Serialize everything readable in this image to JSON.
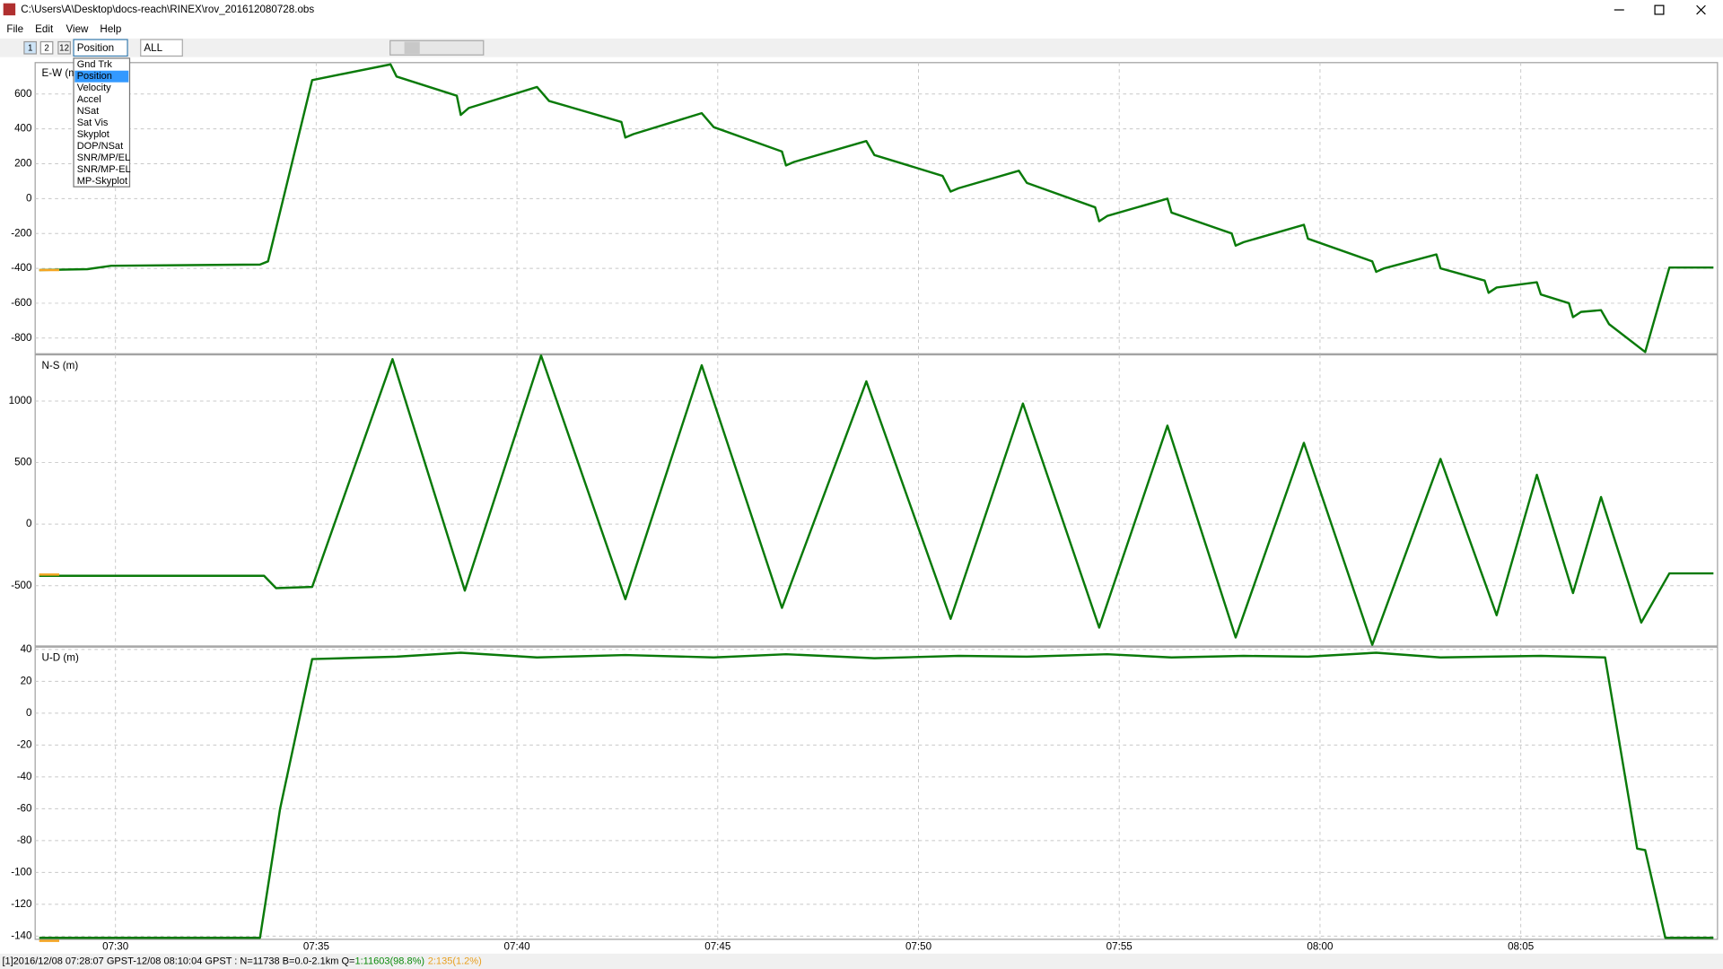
{
  "window": {
    "title": "C:\\Users\\A\\Desktop\\docs-reach\\RINEX\\rov_201612080728.obs"
  },
  "menu": [
    "File",
    "Edit",
    "View",
    "Help"
  ],
  "toolbar": {
    "buttons": [
      "1",
      "2",
      "12"
    ],
    "plot_type": "Position",
    "satellite": "ALL"
  },
  "dropdown": {
    "items": [
      "Gnd Trk",
      "Position",
      "Velocity",
      "Accel",
      "NSat",
      "Sat Vis",
      "Skyplot",
      "DOP/NSat",
      "SNR/MP/EL",
      "SNR/MP-EL",
      "MP-Skyplot"
    ],
    "selected": 1
  },
  "chart_data": [
    {
      "type": "line",
      "y_label": "E-W (m)",
      "xlim": [
        448.0,
        489.9
      ],
      "ylim": [
        -890,
        780
      ],
      "yticks": [
        600,
        400,
        200,
        0,
        -200,
        -400,
        -600,
        -800
      ],
      "grid": true,
      "series": [
        {
          "color": "#0a7a0a",
          "x": [
            448.1,
            449.3,
            449.9,
            453.6,
            453.8,
            454.9,
            456.85,
            457.0,
            458.5,
            458.6,
            458.8,
            460.5,
            460.8,
            462.6,
            462.7,
            462.9,
            464.6,
            464.9,
            466.6,
            466.7,
            466.9,
            468.7,
            468.9,
            470.6,
            470.8,
            471.0,
            472.5,
            472.7,
            474.4,
            474.5,
            474.7,
            476.2,
            476.3,
            477.8,
            477.9,
            478.1,
            479.6,
            479.7,
            481.3,
            481.4,
            481.6,
            482.9,
            483.0,
            484.1,
            484.2,
            484.4,
            485.4,
            485.5,
            486.2,
            486.3,
            486.5,
            487.0,
            487.2,
            488.1,
            488.7,
            489.8
          ],
          "values": [
            -410,
            -405,
            -385,
            -378,
            -360,
            680,
            770,
            700,
            590,
            480,
            520,
            640,
            560,
            440,
            350,
            370,
            490,
            410,
            270,
            190,
            210,
            330,
            250,
            130,
            40,
            60,
            160,
            90,
            -50,
            -130,
            -100,
            0,
            -80,
            -200,
            -270,
            -250,
            -150,
            -230,
            -360,
            -420,
            -400,
            -320,
            -400,
            -470,
            -540,
            -510,
            -480,
            -550,
            -600,
            -680,
            -650,
            -640,
            -720,
            -880,
            -395,
            -395
          ]
        },
        {
          "color": "#f5a623",
          "x": [
            448.1,
            448.6
          ],
          "values": [
            -410,
            -410
          ]
        }
      ]
    },
    {
      "type": "line",
      "y_label": "N-S (m)",
      "xlim": [
        448.0,
        489.9
      ],
      "ylim": [
        -990,
        1375
      ],
      "yticks": [
        1000,
        500,
        0,
        -500
      ],
      "grid": true,
      "series": [
        {
          "color": "#0a7a0a",
          "x": [
            448.1,
            453.7,
            454.0,
            454.9,
            456.9,
            458.7,
            460.6,
            462.7,
            464.6,
            466.6,
            468.7,
            470.8,
            472.6,
            474.5,
            476.2,
            477.9,
            479.6,
            481.3,
            483.0,
            484.4,
            485.4,
            486.3,
            487.0,
            488.0,
            488.7,
            489.8
          ],
          "values": [
            -420,
            -420,
            -520,
            -510,
            1340,
            -540,
            1370,
            -610,
            1290,
            -680,
            1160,
            -770,
            980,
            -840,
            800,
            -920,
            660,
            -980,
            530,
            -740,
            400,
            -560,
            220,
            -800,
            -400,
            -400
          ]
        },
        {
          "color": "#f5a623",
          "x": [
            448.1,
            448.6
          ],
          "values": [
            -410,
            -410
          ]
        }
      ]
    },
    {
      "type": "line",
      "y_label": "U-D (m)",
      "xlim": [
        448.0,
        489.9
      ],
      "ylim": [
        -142,
        41.5
      ],
      "yticks": [
        40,
        20,
        0,
        -20,
        -40,
        -60,
        -80,
        -100,
        -120,
        -140
      ],
      "grid": true,
      "xticks": [
        {
          "value": 450,
          "label": "07:30"
        },
        {
          "value": 455,
          "label": "07:35"
        },
        {
          "value": 460,
          "label": "07:40"
        },
        {
          "value": 465,
          "label": "07:45"
        },
        {
          "value": 470,
          "label": "07:50"
        },
        {
          "value": 475,
          "label": "07:55"
        },
        {
          "value": 480,
          "label": "08:00"
        },
        {
          "value": 485,
          "label": "08:05"
        }
      ],
      "series": [
        {
          "color": "#0a7a0a",
          "x": [
            448.1,
            453.6,
            454.1,
            454.9,
            457.0,
            458.6,
            460.5,
            462.7,
            464.9,
            466.7,
            468.9,
            471.0,
            472.7,
            474.7,
            476.3,
            478.1,
            479.7,
            481.4,
            483.0,
            485.5,
            487.1,
            487.9,
            488.1,
            488.6,
            489.8
          ],
          "values": [
            -141,
            -141,
            -60,
            34,
            35.5,
            38,
            35,
            36.5,
            35,
            37,
            34.5,
            36,
            35.5,
            37,
            35,
            36,
            35.5,
            38,
            35,
            36,
            35,
            -85,
            -86,
            -141,
            -141
          ]
        },
        {
          "color": "#f5a623",
          "x": [
            448.1,
            448.6
          ],
          "values": [
            -143,
            -143
          ]
        }
      ]
    }
  ],
  "status": {
    "text": "[1]2016/12/08 07:28:07 GPST-12/08 08:10:04 GPST : N=11738 B=0.0-2.1km Q=",
    "q1": "1:11603(98.8%)",
    "q2": "2:135(1.2%)"
  }
}
